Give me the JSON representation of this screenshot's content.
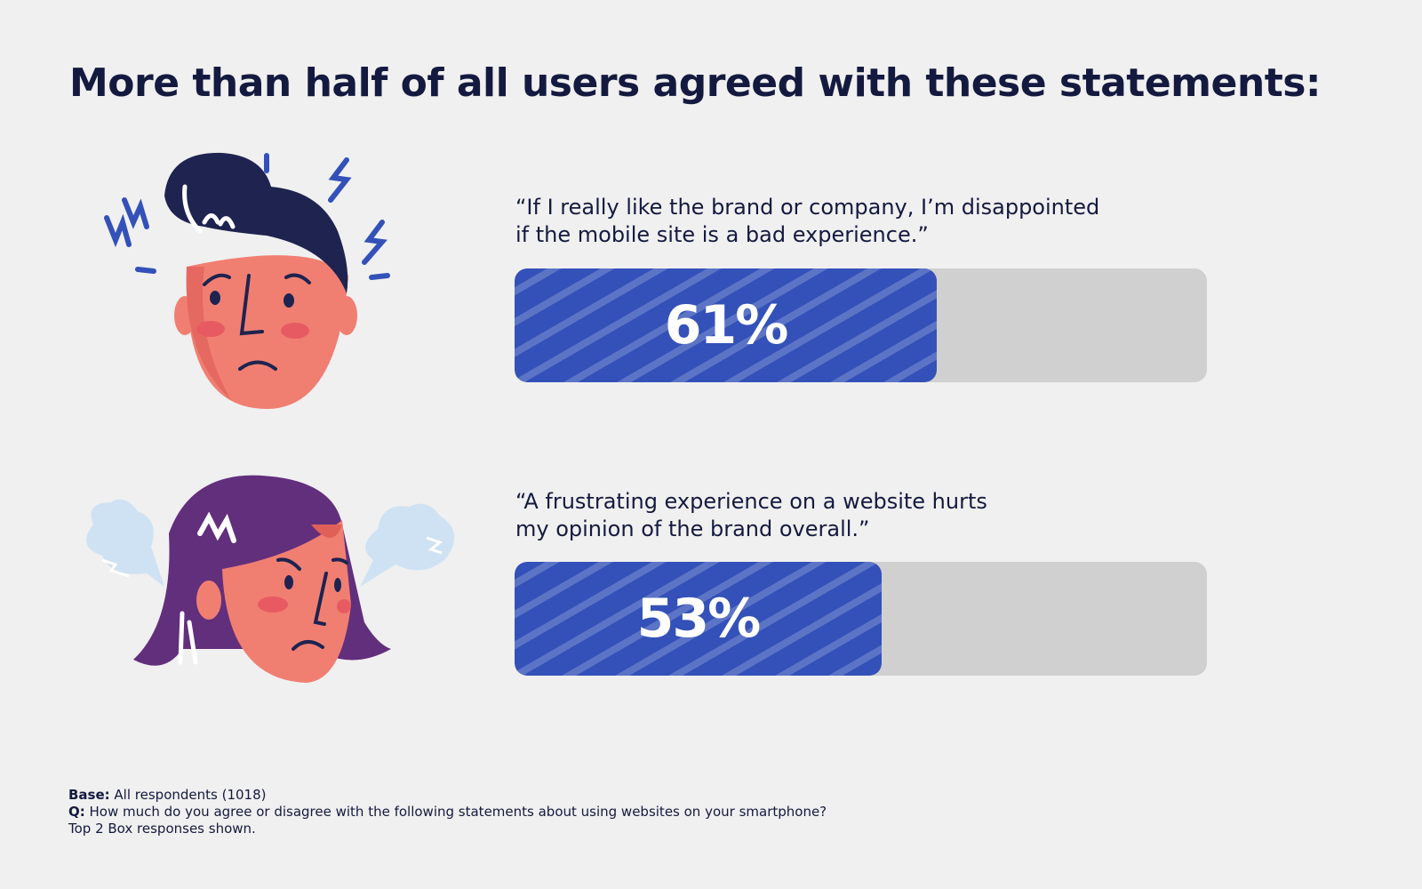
{
  "chart_data": {
    "type": "bar",
    "title": "More than half of all users agreed with these statements:",
    "orientation": "horizontal",
    "xlim": [
      0,
      100
    ],
    "categories": [
      "“If I really like the brand or company, I’m disappointed if the mobile site is a bad experience.”",
      "“A frustrating experience on a website hurts my opinion of the brand overall.”"
    ],
    "values": [
      61,
      53
    ],
    "labels": [
      "61%",
      "53%"
    ],
    "colors": {
      "fill": "#3351b8",
      "track": "#d0d0d0",
      "stripe": "#5a72c8"
    }
  },
  "statements": [
    {
      "line1": "“If I really like the brand or company, I’m disappointed",
      "line2": "if the mobile site is a bad experience.”"
    },
    {
      "line1": "“A frustrating experience on a website hurts",
      "line2": "my opinion of the brand overall.”"
    }
  ],
  "illustrations": [
    "frustrated-man-face",
    "angry-woman-face"
  ],
  "footnote": {
    "base_label": "Base:",
    "base_text": " All respondents (1018)",
    "q_label": "Q:",
    "q_text": " How much do you agree or disagree with the following statements about using websites on your smartphone?",
    "note": "Top 2 Box responses shown."
  }
}
